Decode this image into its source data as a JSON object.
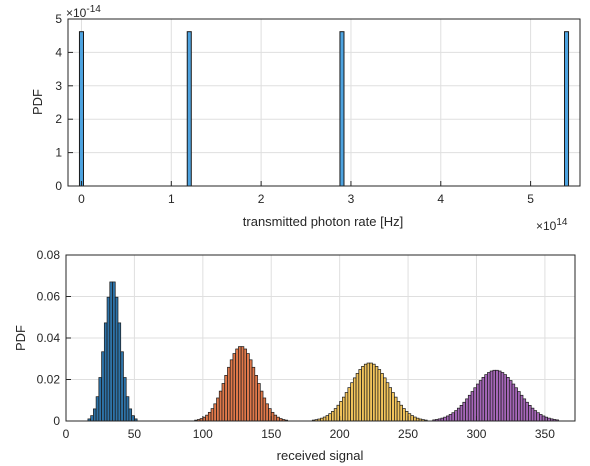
{
  "chart_data": [
    {
      "type": "bar",
      "xlabel": "transmitted photon rate [Hz]",
      "ylabel": "PDF",
      "x_multiplier_label": "×10",
      "x_multiplier_exp": "14",
      "y_multiplier_label": "×10",
      "y_multiplier_exp": "-14",
      "xlim": [
        -0.15,
        5.55
      ],
      "ylim": [
        0,
        5
      ],
      "x_ticks": [
        0,
        1,
        2,
        3,
        4,
        5
      ],
      "y_ticks": [
        0,
        1,
        2,
        3,
        4,
        5
      ],
      "bar_width": 0.045,
      "x": [
        0,
        1.2,
        2.9,
        5.4
      ],
      "values": [
        4.62,
        4.62,
        4.62,
        4.62
      ],
      "color": "#4DA3E0",
      "grid": true
    },
    {
      "type": "bar",
      "xlabel": "received signal",
      "ylabel": "PDF",
      "xlim": [
        0,
        372
      ],
      "ylim": [
        0,
        0.08
      ],
      "x_ticks": [
        0,
        50,
        100,
        150,
        200,
        250,
        300,
        350
      ],
      "y_ticks": [
        0,
        0.02,
        0.04,
        0.06,
        0.08
      ],
      "y_tick_labels": [
        "0",
        "0.02",
        "0.04",
        "0.06",
        "0.08"
      ],
      "bin_width": 2,
      "grid": true,
      "series": [
        {
          "mean": 34,
          "peak": 0.068,
          "color": "#2E73A8"
        },
        {
          "mean": 128,
          "peak": 0.036,
          "color": "#E0784A"
        },
        {
          "mean": 222,
          "peak": 0.028,
          "color": "#F2C45C"
        },
        {
          "mean": 314,
          "peak": 0.0245,
          "color": "#A566B8"
        }
      ]
    }
  ]
}
